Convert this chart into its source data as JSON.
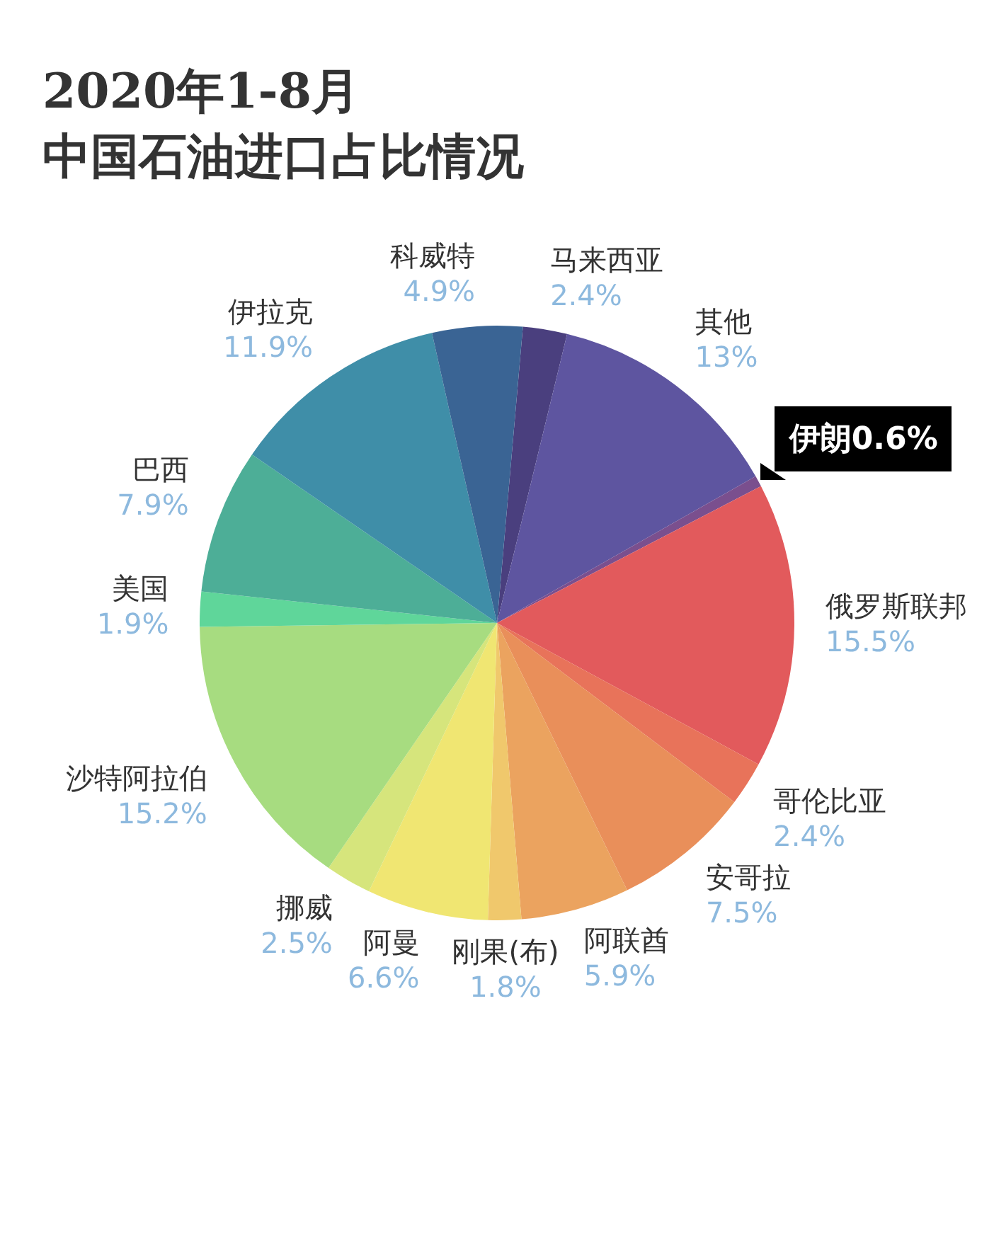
{
  "chart_data": {
    "type": "pie",
    "title": "2020年1-8月",
    "subtitle": "中国石油进口占比情况",
    "categories": [
      "马来西亚",
      "其他",
      "伊朗",
      "俄罗斯联邦",
      "哥伦比亚",
      "安哥拉",
      "阿联酋",
      "刚果(布)",
      "阿曼",
      "挪威",
      "沙特阿拉伯",
      "美国",
      "巴西",
      "伊拉克",
      "科威特"
    ],
    "values": [
      2.4,
      13,
      0.6,
      15.5,
      2.4,
      7.5,
      5.9,
      1.8,
      6.6,
      2.5,
      15.2,
      1.9,
      7.9,
      11.9,
      4.9
    ],
    "colors": [
      "#4a3f7e",
      "#5e55a0",
      "#7a4f8e",
      "#e25a5c",
      "#e8735a",
      "#e98f5a",
      "#eba35f",
      "#f0c86c",
      "#f0e672",
      "#d6e57c",
      "#a7dc80",
      "#5fd69a",
      "#4dae97",
      "#3f8ea8",
      "#3a6494"
    ],
    "value_labels": [
      "2.4%",
      "13%",
      "0.6%",
      "15.5%",
      "2.4%",
      "7.5%",
      "5.9%",
      "1.8%",
      "6.6%",
      "2.5%",
      "15.2%",
      "1.9%",
      "7.9%",
      "11.9%",
      "4.9%"
    ],
    "legend": false
  }
}
